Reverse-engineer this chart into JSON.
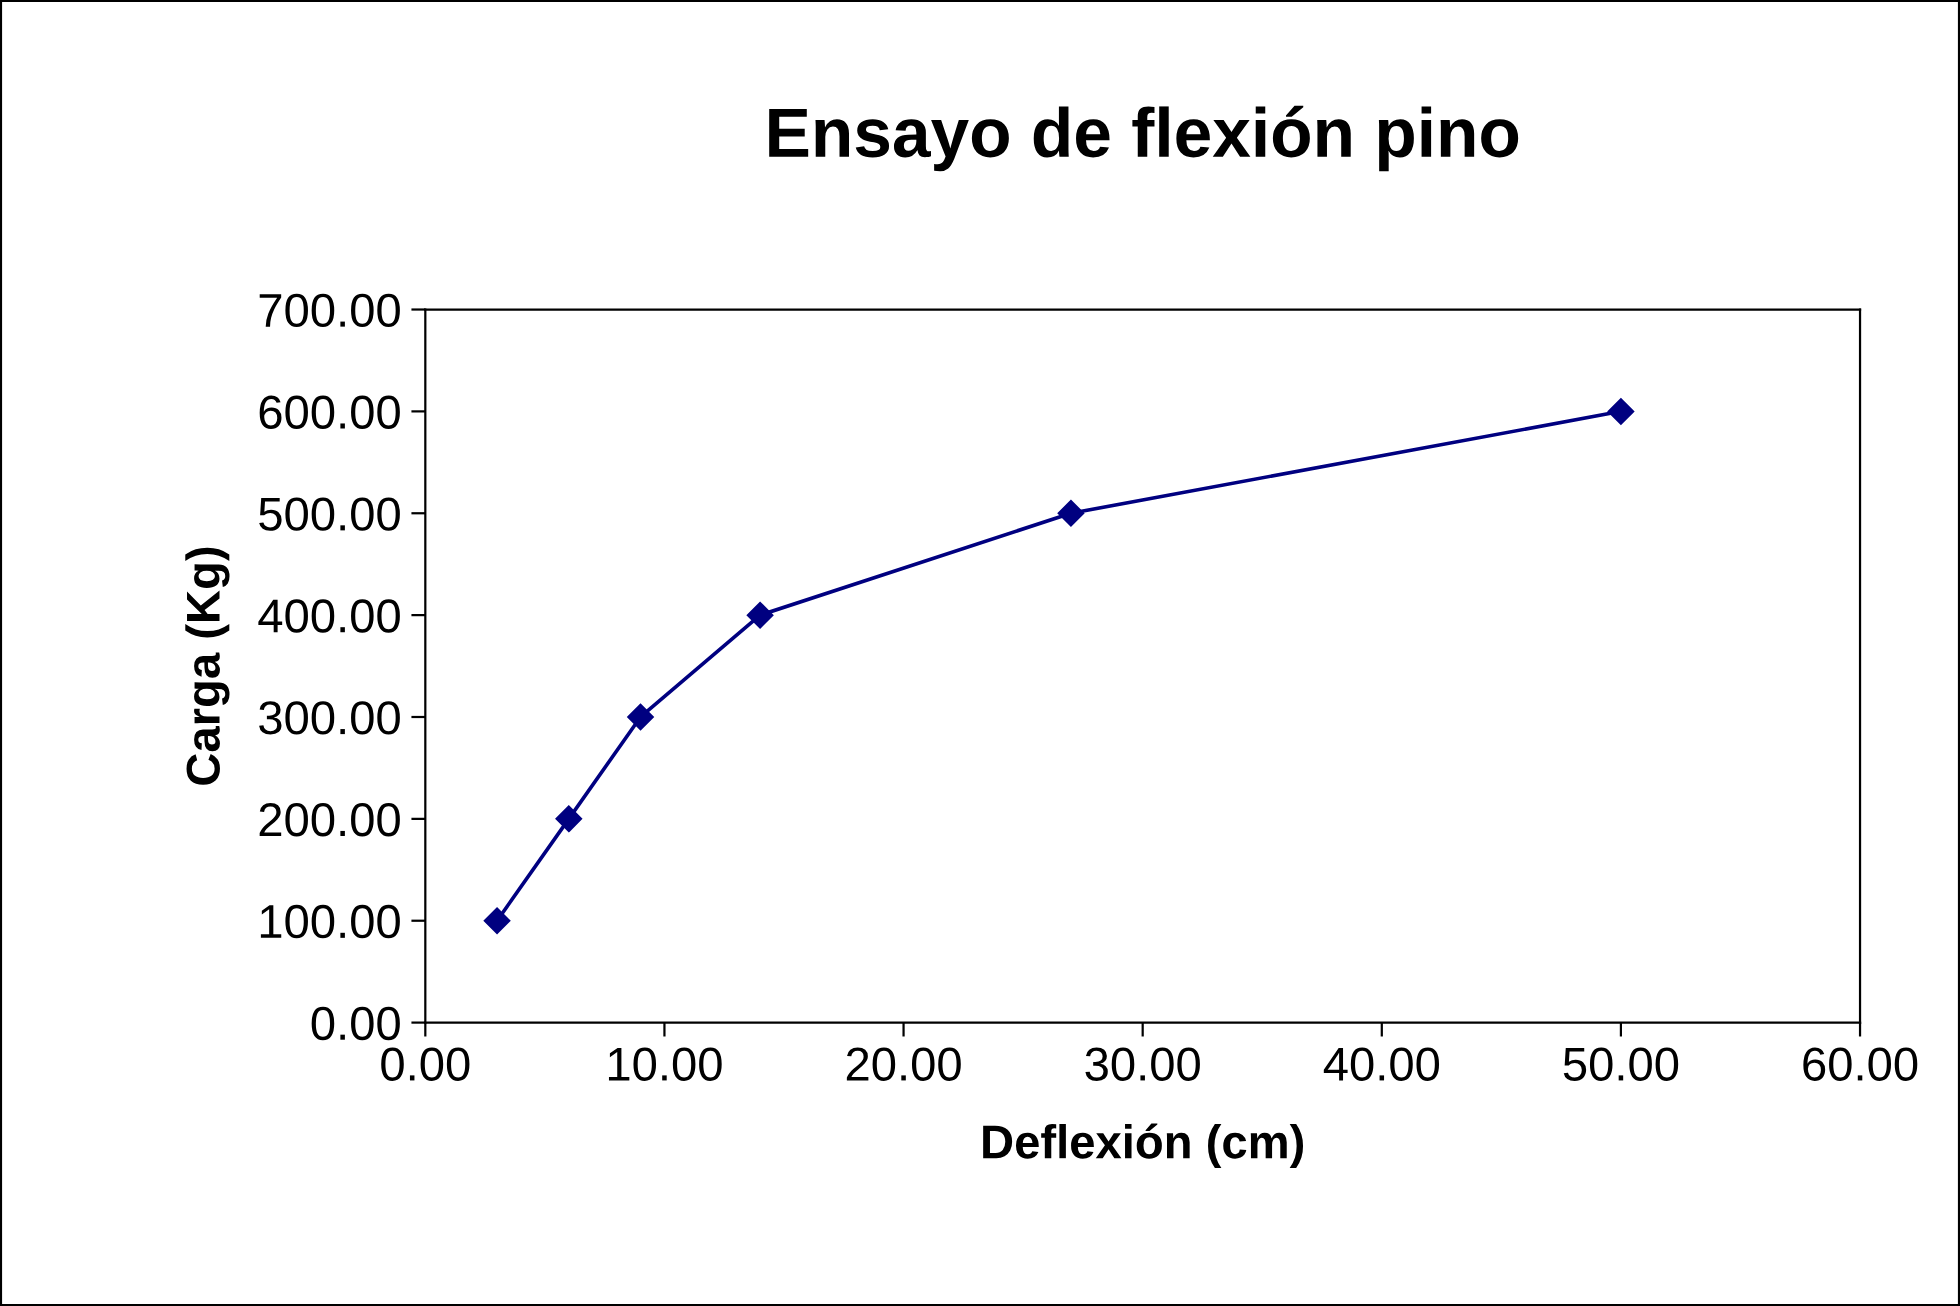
{
  "chart_data": {
    "type": "line",
    "title": "Ensayo de flexión pino",
    "xlabel": "Deflexión (cm)",
    "ylabel": "Carga (Kg)",
    "x": [
      3,
      6,
      9,
      14,
      27,
      50
    ],
    "series": [
      {
        "color": "#000080",
        "values": [
          100,
          200,
          300,
          400,
          500,
          600
        ]
      }
    ],
    "xlim": [
      0,
      60
    ],
    "xticks": [
      {
        "value": 0,
        "label": "0.00"
      },
      {
        "value": 10,
        "label": "10.00"
      },
      {
        "value": 20,
        "label": "20.00"
      },
      {
        "value": 30,
        "label": "30.00"
      },
      {
        "value": 40,
        "label": "40.00"
      },
      {
        "value": 50,
        "label": "50.00"
      },
      {
        "value": 60,
        "label": "60.00"
      }
    ],
    "ylim": [
      0,
      700
    ],
    "yticks": [
      {
        "value": 0,
        "label": "0.00"
      },
      {
        "value": 100,
        "label": "100.00"
      },
      {
        "value": 200,
        "label": "200.00"
      },
      {
        "value": 300,
        "label": "300.00"
      },
      {
        "value": 400,
        "label": "400.00"
      },
      {
        "value": 500,
        "label": "500.00"
      },
      {
        "value": 600,
        "label": "600.00"
      },
      {
        "value": 700,
        "label": "700.00"
      }
    ],
    "marker": "diamond",
    "grid": false
  }
}
